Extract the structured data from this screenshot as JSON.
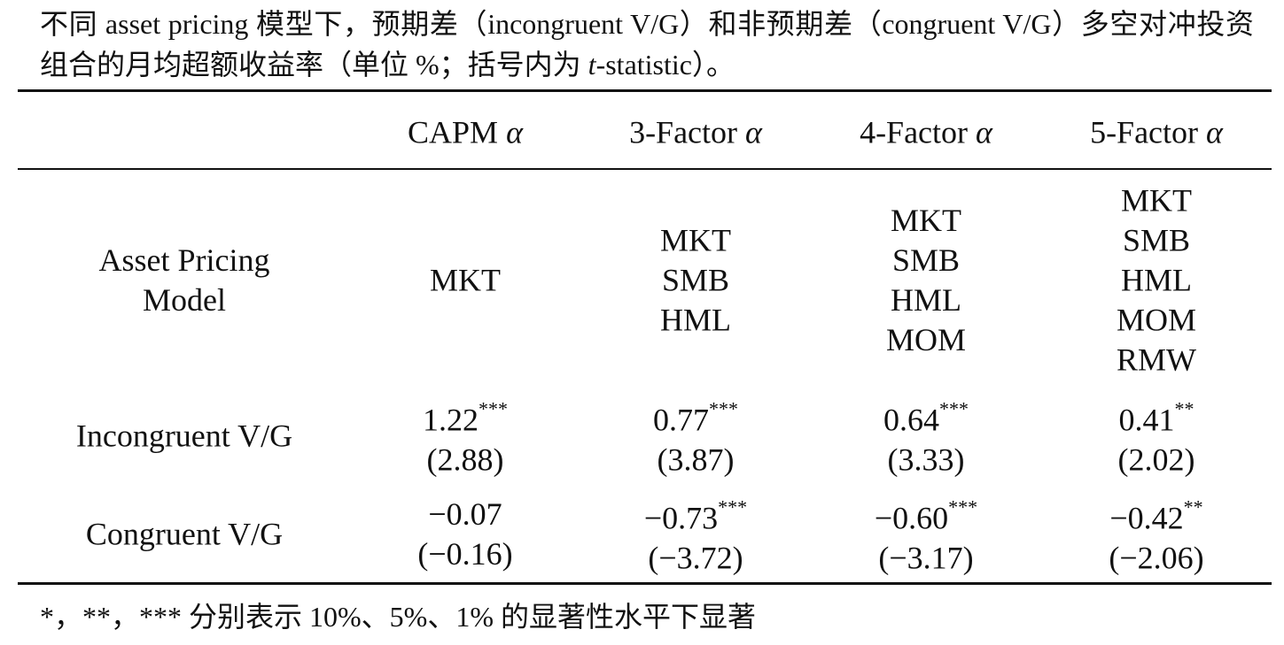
{
  "caption": {
    "before": "不同 asset pricing 模型下，预期差（incongruent V/G）和非预期差（congruent V/G）多空对冲投资组合的月均超额收益率（单位 %；括号内为 ",
    "italic": "t",
    "after": "-statistic）。"
  },
  "table": {
    "columns": [
      {
        "name": "CAPM",
        "symbol": "α"
      },
      {
        "name": "3-Factor",
        "symbol": "α"
      },
      {
        "name": "4-Factor",
        "symbol": "α"
      },
      {
        "name": "5-Factor",
        "symbol": "α"
      }
    ],
    "model_row": {
      "label": "Asset Pricing Model",
      "factors": [
        [
          "MKT"
        ],
        [
          "MKT",
          "SMB",
          "HML"
        ],
        [
          "MKT",
          "SMB",
          "HML",
          "MOM"
        ],
        [
          "MKT",
          "SMB",
          "HML",
          "MOM",
          "RMW"
        ]
      ]
    },
    "rows": [
      {
        "label": "Incongruent V/G",
        "cells": [
          {
            "value": "1.22",
            "stars": "***",
            "t": "(2.88)"
          },
          {
            "value": "0.77",
            "stars": "***",
            "t": "(3.87)"
          },
          {
            "value": "0.64",
            "stars": "***",
            "t": "(3.33)"
          },
          {
            "value": "0.41",
            "stars": "**",
            "t": "(2.02)"
          }
        ]
      },
      {
        "label": "Congruent V/G",
        "cells": [
          {
            "value": "−0.07",
            "t": "(−0.16)"
          },
          {
            "value": "−0.73",
            "stars": "***",
            "t": "(−3.72)"
          },
          {
            "value": "−0.60",
            "stars": "***",
            "t": "(−3.17)"
          },
          {
            "value": "−0.42",
            "stars": "**",
            "t": "(−2.06)"
          }
        ]
      }
    ]
  },
  "footnote": "*，**，*** 分别表示 10%、5%、1% 的显著性水平下显著"
}
